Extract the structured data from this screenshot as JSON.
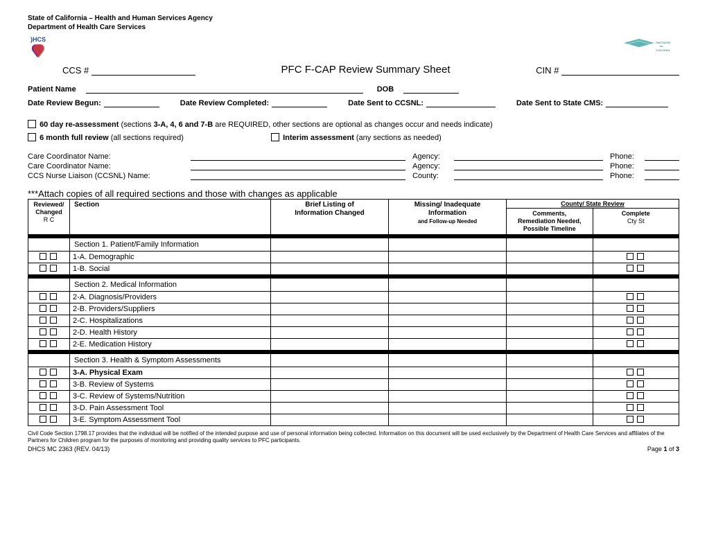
{
  "header": {
    "line1": "State of California – Health and Human Services Agency",
    "line2": "Department of Health Care Services",
    "logo_left_text": "DHCS",
    "logo_right_text": "PARTNERS for CHILDREN"
  },
  "title": {
    "ccs_label": "CCS #",
    "main": "PFC F-CAP Review Summary Sheet",
    "cin_label": "CIN #"
  },
  "fields": {
    "patient_name": "Patient Name",
    "dob": "DOB",
    "date_begun": "Date Review Begun:",
    "date_completed": "Date Review Completed:",
    "date_ccsnl": "Date Sent to CCSNL:",
    "date_cms": "Date Sent to State CMS:"
  },
  "assessments": {
    "sixty_day_bold": "60 day re-assessment",
    "sixty_day_rest": " (sections ",
    "sixty_day_sections": "3-A, 4, 6 and 7-B",
    "sixty_day_tail": " are REQUIRED, other sections are optional as changes occur and needs indicate)",
    "six_month_bold": "6 month full review",
    "six_month_rest": " (all sections required)",
    "interim_bold": "Interim assessment",
    "interim_rest": " (any sections as needed)"
  },
  "coordinators": {
    "row1": {
      "label": "Care Coordinator Name:",
      "mid": "Agency:",
      "right": "Phone:"
    },
    "row2": {
      "label": "Care Coordinator Name:",
      "mid": "Agency:",
      "right": "Phone:"
    },
    "row3": {
      "label": "CCS Nurse Liaison (CCSNL) Name:",
      "mid": "County:",
      "right": "Phone:"
    }
  },
  "attach_note": "***Attach copies of all required sections and those with changes as applicable",
  "table": {
    "headers": {
      "rc_top": "Reviewed/",
      "rc_mid": "Changed",
      "rc_sub": "R    C",
      "section": "Section",
      "brief_top": "Brief Listing of",
      "brief_bot": "Information Changed",
      "missing_top": "Missing/ Inadequate",
      "missing_mid": "Information",
      "missing_bot": "and Follow-up Needed",
      "county_top": "County/ State Review",
      "comments_top": "Comments,",
      "comments_mid": "Remediation Needed,",
      "comments_bot": "Possible Timeline",
      "complete_top": "Complete",
      "complete_sub": "Cty   St"
    },
    "sections": [
      {
        "header": "Section 1. Patient/Family Information",
        "rows": [
          {
            "label": "1-A. Demographic",
            "boxes": true
          },
          {
            "label": "1-B. Social",
            "boxes": true
          }
        ]
      },
      {
        "header": "Section 2. Medical Information",
        "rows": [
          {
            "label": "2-A. Diagnosis/Providers",
            "boxes": true
          },
          {
            "label": "2-B. Providers/Suppliers",
            "boxes": true
          },
          {
            "label": "2-C. Hospitalizations",
            "boxes": true
          },
          {
            "label": "2-D. Health History",
            "boxes": true
          },
          {
            "label": "2-E. Medication History",
            "boxes": true
          }
        ]
      },
      {
        "header": "Section 3. Health & Symptom Assessments",
        "rows": [
          {
            "label": "3-A. Physical Exam",
            "boxes": true,
            "bold": true
          },
          {
            "label": "3-B. Review of Systems",
            "boxes": true
          },
          {
            "label": "3-C. Review of Systems/Nutrition",
            "boxes": true
          },
          {
            "label": "3-D. Pain Assessment Tool",
            "boxes": true
          },
          {
            "label": "3-E. Symptom Assessment Tool",
            "boxes": true
          }
        ]
      }
    ]
  },
  "footer": {
    "legal": "Civil Code Section 1798.17 provides that the individual will be notified of the intended purpose and use of personal information being collected. Information on this document will be used exclusively by the Department of Health Care Services and affiliates of the Partners for Children program for the purposes of monitoring and providing quality services to PFC participants.",
    "form_id": "DHCS MC 2363 (REV. 04/13)",
    "page": "Page ",
    "page_num": "1",
    "page_of": " of ",
    "page_total": "3"
  },
  "colors": {
    "text": "#000000",
    "dhcs_blue": "#2a4b8d",
    "heart_purple": "#6b2a8a",
    "heart_red": "#d43a3a",
    "partners_teal": "#5fb5b5"
  }
}
